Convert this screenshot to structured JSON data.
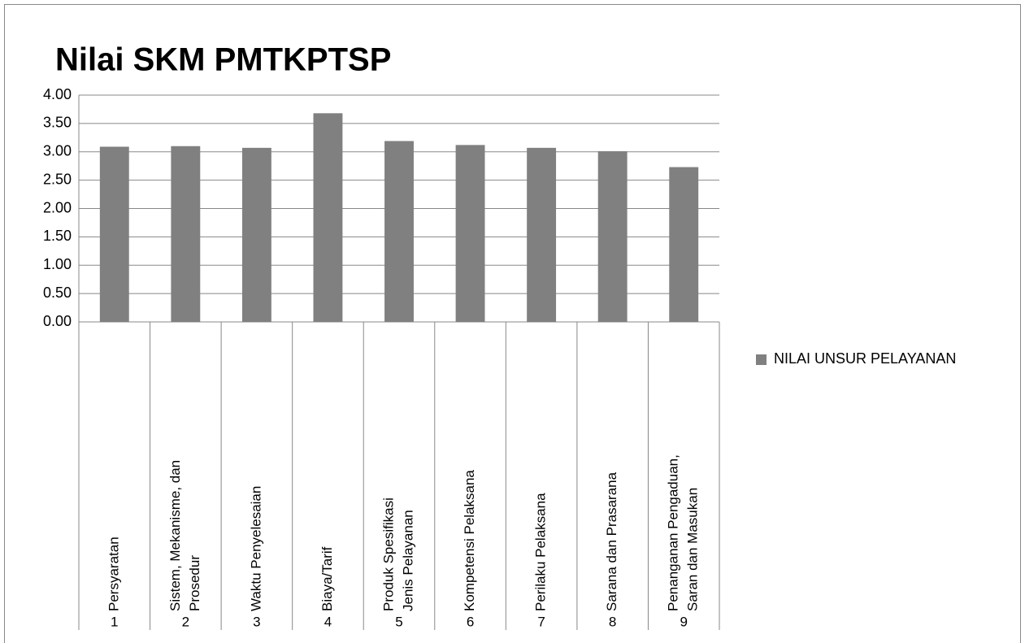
{
  "chart_data": {
    "type": "bar",
    "title": "Nilai SKM PMTKPTSP",
    "categories": [
      [
        "Persyaratan"
      ],
      [
        "Sistem, Mekanisme, dan",
        "Prosedur"
      ],
      [
        "Waktu Penyelesaian"
      ],
      [
        "Biaya/Tarif"
      ],
      [
        "Produk Spesifikasi",
        "Jenis Pelayanan"
      ],
      [
        "Kompetensi Pelaksana"
      ],
      [
        "Perilaku Pelaksana"
      ],
      [
        "Sarana dan Prasarana"
      ],
      [
        "Penanganan Pengaduan,",
        "Saran dan Masukan"
      ]
    ],
    "category_numbers": [
      "1",
      "2",
      "3",
      "4",
      "5",
      "6",
      "7",
      "8",
      "9"
    ],
    "series": [
      {
        "name": "NILAI UNSUR PELAYANAN",
        "color": "#808080",
        "values": [
          3.09,
          3.1,
          3.07,
          3.68,
          3.19,
          3.12,
          3.07,
          3.01,
          2.73
        ]
      }
    ],
    "ylim": [
      0,
      4
    ],
    "yticks": [
      {
        "value": 0,
        "label": "0.00"
      },
      {
        "value": 0.5,
        "label": "0.50"
      },
      {
        "value": 1,
        "label": "1.00"
      },
      {
        "value": 1.5,
        "label": "1.50"
      },
      {
        "value": 2,
        "label": "2.00"
      },
      {
        "value": 2.5,
        "label": "2.50"
      },
      {
        "value": 3,
        "label": "3.00"
      },
      {
        "value": 3.5,
        "label": "3.50"
      },
      {
        "value": 4,
        "label": "4.00"
      }
    ],
    "grid": true,
    "legend": "right"
  }
}
